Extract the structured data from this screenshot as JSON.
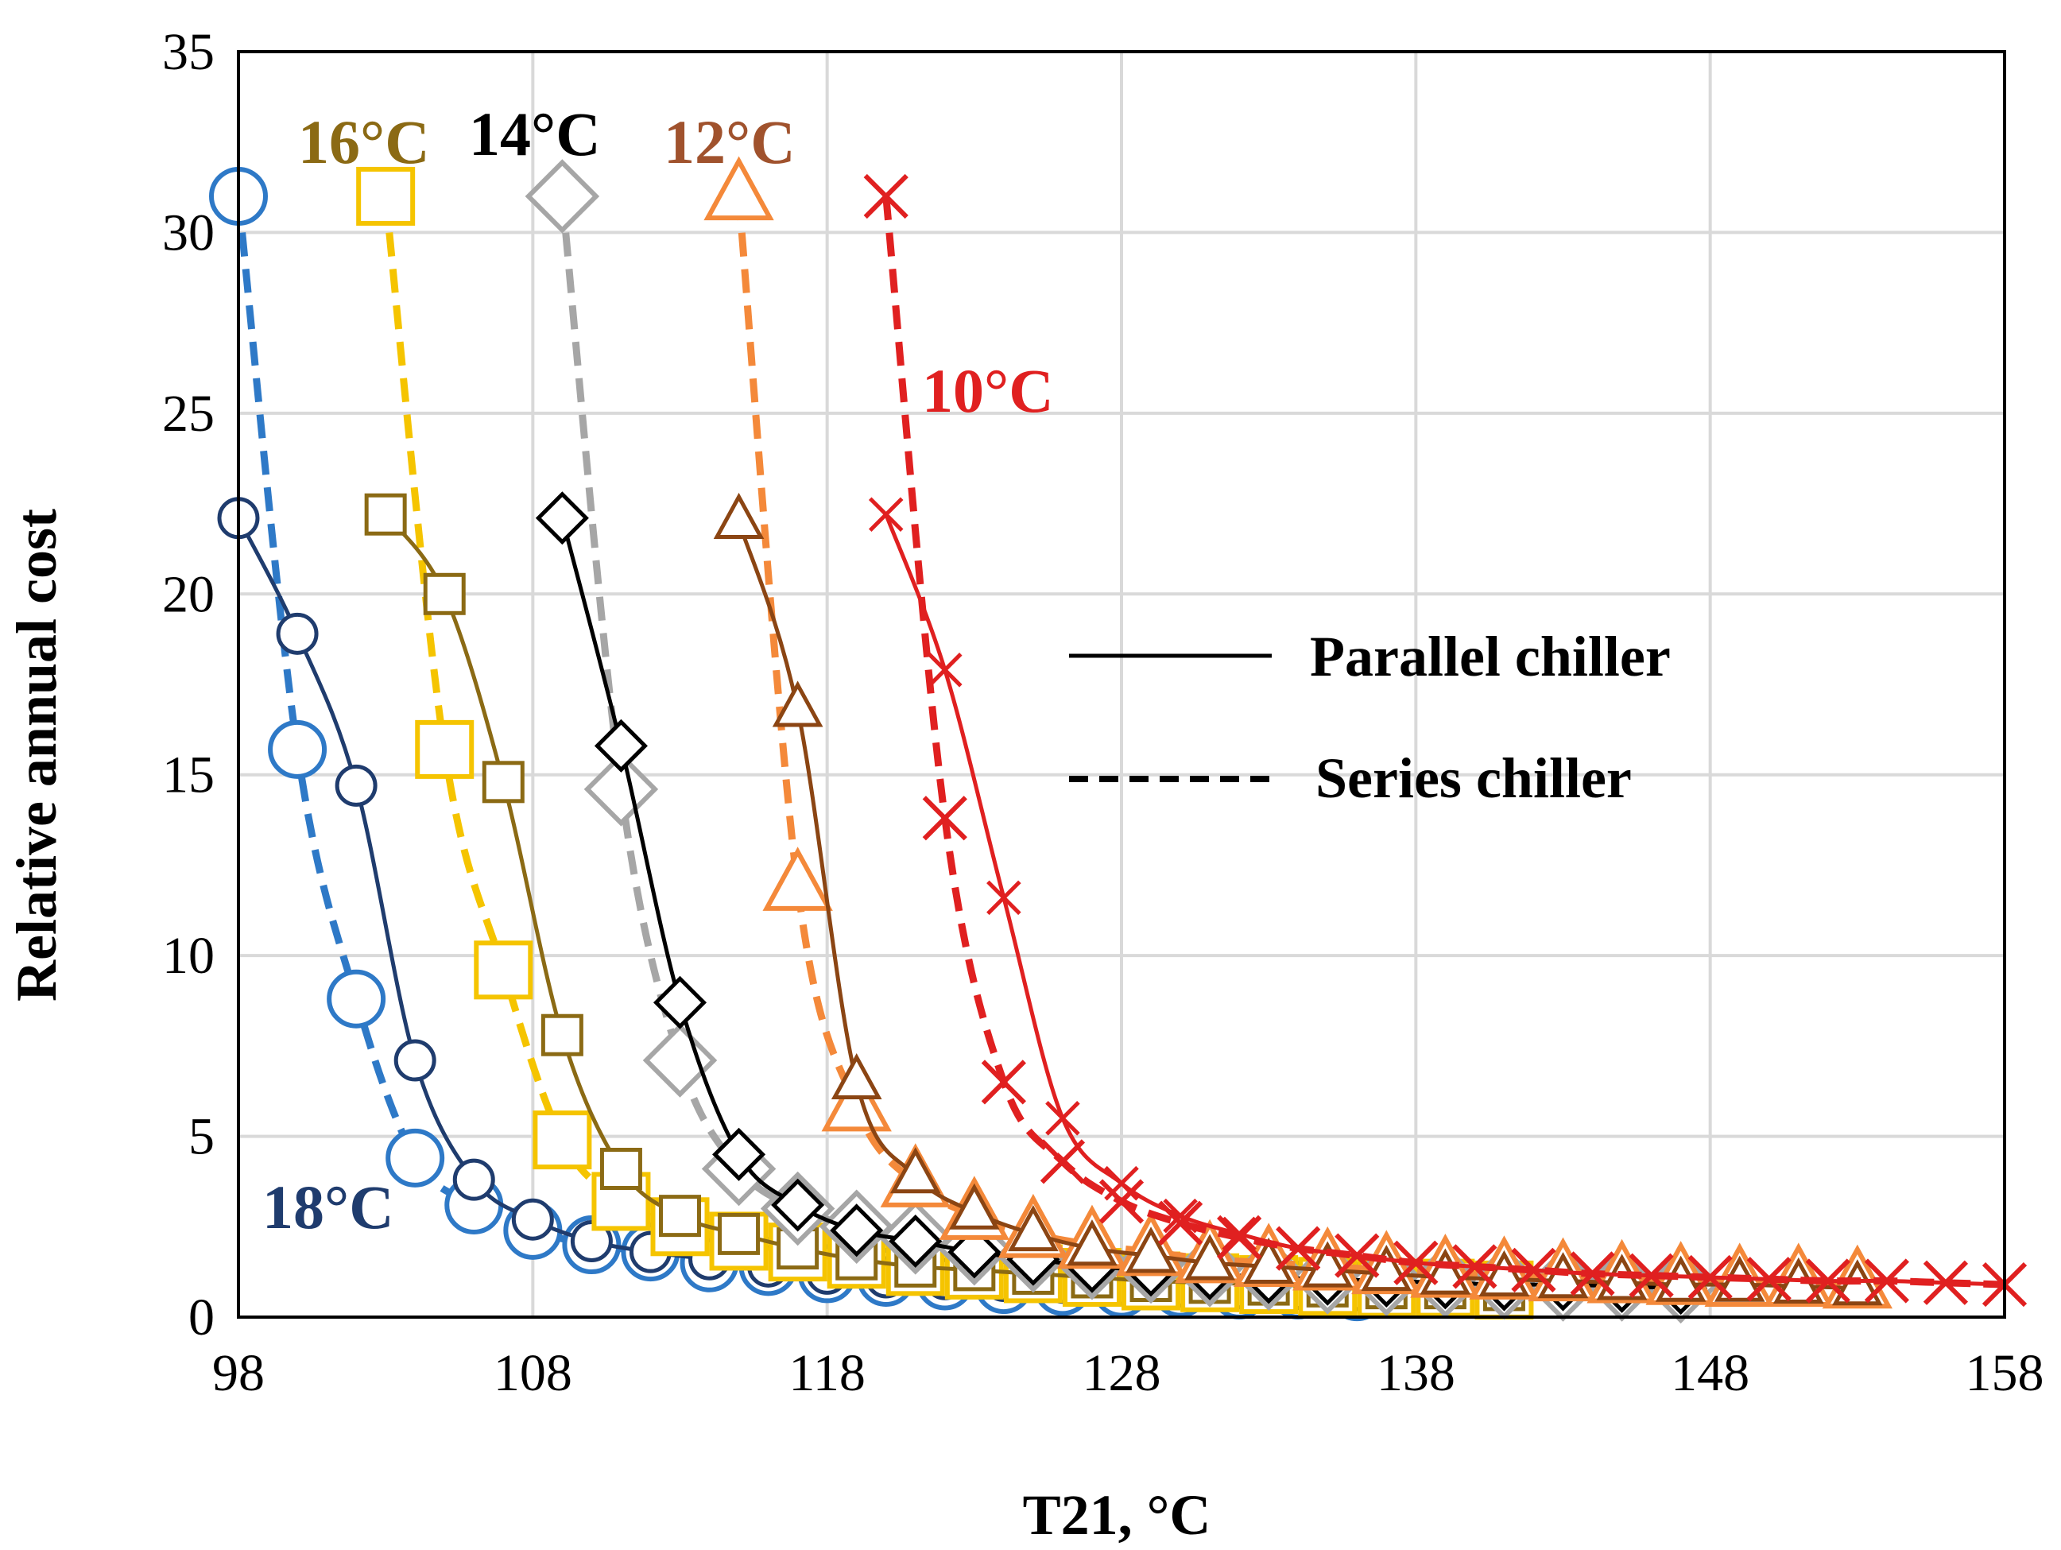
{
  "chart_data": {
    "type": "line",
    "xlabel": "T21, °C",
    "ylabel": "Relative annual cost",
    "xlim": [
      98,
      158
    ],
    "ylim": [
      0,
      35
    ],
    "xticks": [
      98,
      108,
      118,
      128,
      138,
      148,
      158
    ],
    "yticks": [
      0,
      5,
      10,
      15,
      20,
      25,
      30,
      35
    ],
    "grid": true,
    "legend": {
      "position": "right",
      "entries": [
        {
          "label": "Parallel chiller",
          "style": "solid"
        },
        {
          "label": "Series chiller",
          "style": "dashed"
        }
      ]
    },
    "groups": [
      {
        "label": "18°C",
        "label_color": "#1F3C6E",
        "marker": "circle",
        "parallel": {
          "color": "#1F3C6E",
          "x": [
            98,
            100,
            102,
            104,
            106,
            108,
            110,
            112,
            114,
            116,
            118,
            120,
            122,
            124,
            126,
            128,
            130,
            132,
            134,
            136
          ],
          "y": [
            22.1,
            18.9,
            14.7,
            7.1,
            3.8,
            2.7,
            2.1,
            1.8,
            1.6,
            1.4,
            1.2,
            1.1,
            1.05,
            1.0,
            0.95,
            0.9,
            0.85,
            0.8,
            0.78,
            0.75
          ]
        },
        "series": {
          "color": "#2E79C7",
          "x": [
            98,
            100,
            102,
            104,
            106,
            108,
            110,
            112,
            114,
            116,
            118,
            120,
            122,
            124,
            126,
            128,
            130,
            132,
            134,
            136
          ],
          "y": [
            31.0,
            15.7,
            8.8,
            4.4,
            3.1,
            2.4,
            2.0,
            1.8,
            1.5,
            1.4,
            1.2,
            1.1,
            1.0,
            0.9,
            0.85,
            0.8,
            0.8,
            0.75,
            0.75,
            0.7
          ]
        }
      },
      {
        "label": "16°C",
        "label_color": "#8B6A14",
        "marker": "square",
        "parallel": {
          "color": "#8B6A14",
          "x": [
            103,
            105,
            107,
            109,
            111,
            113,
            115,
            117,
            119,
            121,
            123,
            125,
            127,
            129,
            131,
            133,
            135,
            137,
            139,
            141
          ],
          "y": [
            22.2,
            20.0,
            14.8,
            7.8,
            4.1,
            2.8,
            2.3,
            1.9,
            1.6,
            1.4,
            1.3,
            1.2,
            1.1,
            1.0,
            0.95,
            0.9,
            0.85,
            0.8,
            0.8,
            0.75
          ]
        },
        "series": {
          "color": "#F5C400",
          "x": [
            103,
            105,
            107,
            109,
            111,
            113,
            115,
            117,
            119,
            121,
            123,
            125,
            127,
            129,
            131,
            133,
            135,
            137,
            139,
            141
          ],
          "y": [
            31.0,
            15.7,
            9.6,
            4.9,
            3.2,
            2.5,
            2.1,
            1.8,
            1.6,
            1.4,
            1.3,
            1.2,
            1.1,
            1.0,
            0.95,
            0.9,
            0.85,
            0.8,
            0.8,
            0.75
          ]
        }
      },
      {
        "label": "14°C",
        "label_color": "#000000",
        "marker": "diamond",
        "parallel": {
          "color": "#000000",
          "x": [
            109,
            111,
            113,
            115,
            117,
            119,
            121,
            123,
            125,
            127,
            129,
            131,
            133,
            135,
            137,
            139,
            141,
            143,
            145,
            147
          ],
          "y": [
            22.1,
            15.8,
            8.7,
            4.5,
            3.1,
            2.4,
            2.1,
            1.8,
            1.6,
            1.4,
            1.3,
            1.2,
            1.1,
            1.05,
            1.0,
            0.95,
            0.9,
            0.9,
            0.85,
            0.8
          ]
        },
        "series": {
          "color": "#A6A6A6",
          "x": [
            109,
            111,
            113,
            115,
            117,
            119,
            121,
            123,
            125,
            127,
            129,
            131,
            133,
            135,
            137,
            139,
            141,
            143,
            145,
            147
          ],
          "y": [
            31.0,
            14.6,
            7.1,
            4.1,
            3.0,
            2.5,
            2.2,
            1.9,
            1.7,
            1.5,
            1.4,
            1.3,
            1.2,
            1.1,
            1.05,
            1.0,
            0.95,
            0.9,
            0.9,
            0.85
          ]
        }
      },
      {
        "label": "12°C",
        "label_color": "#A0522D",
        "marker": "triangle",
        "parallel": {
          "color": "#8B4513",
          "x": [
            115,
            117,
            119,
            121,
            123,
            125,
            127,
            129,
            131,
            133,
            135,
            137,
            139,
            141,
            143,
            145,
            147,
            149,
            151,
            153
          ],
          "y": [
            22.0,
            16.8,
            6.5,
            3.9,
            2.9,
            2.3,
            1.9,
            1.7,
            1.5,
            1.4,
            1.3,
            1.2,
            1.1,
            1.05,
            1.0,
            0.95,
            0.9,
            0.9,
            0.85,
            0.8
          ]
        },
        "series": {
          "color": "#F4893A",
          "x": [
            115,
            117,
            119,
            121,
            123,
            125,
            127,
            129,
            131,
            133,
            135,
            137,
            139,
            141,
            143,
            145,
            147,
            149,
            151,
            153
          ],
          "y": [
            31.0,
            11.9,
            5.8,
            3.7,
            2.8,
            2.3,
            2.0,
            1.8,
            1.6,
            1.5,
            1.4,
            1.3,
            1.2,
            1.15,
            1.1,
            1.05,
            1.0,
            0.95,
            0.95,
            0.9
          ]
        }
      },
      {
        "label": "10°C",
        "label_color": "#E02020",
        "marker": "cross",
        "parallel": {
          "color": "#E02020",
          "x": [
            120,
            122,
            124,
            126,
            128,
            130,
            132,
            134,
            136,
            138,
            140,
            142,
            144,
            146,
            148,
            150,
            152,
            154,
            156,
            158
          ],
          "y": [
            22.2,
            17.9,
            11.6,
            5.5,
            3.7,
            2.8,
            2.3,
            1.9,
            1.7,
            1.5,
            1.4,
            1.3,
            1.2,
            1.15,
            1.1,
            1.05,
            1.0,
            1.0,
            0.95,
            0.9
          ]
        },
        "series": {
          "color": "#E02020",
          "x": [
            120,
            122,
            124,
            126,
            128,
            130,
            132,
            134,
            136,
            138,
            140,
            142,
            144,
            146,
            148,
            150,
            152,
            154,
            156,
            158
          ],
          "y": [
            31.0,
            13.8,
            6.5,
            4.3,
            3.2,
            2.6,
            2.2,
            1.9,
            1.7,
            1.5,
            1.4,
            1.3,
            1.2,
            1.15,
            1.1,
            1.05,
            1.0,
            1.0,
            0.95,
            0.9
          ]
        }
      }
    ]
  }
}
